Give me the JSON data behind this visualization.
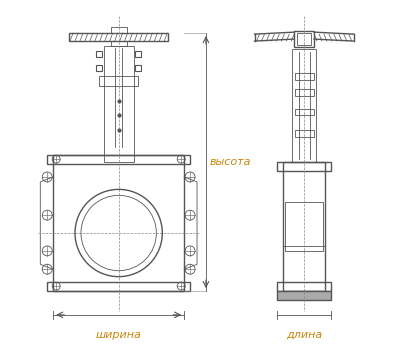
{
  "bg_color": "#ffffff",
  "line_color": "#555555",
  "label_color": "#c8860a",
  "label_shirina": "ширина",
  "label_dlina": "длина",
  "label_vysota": "высота",
  "label_fontsize": 8,
  "fig_width": 4.0,
  "fig_height": 3.46,
  "dpi": 100
}
